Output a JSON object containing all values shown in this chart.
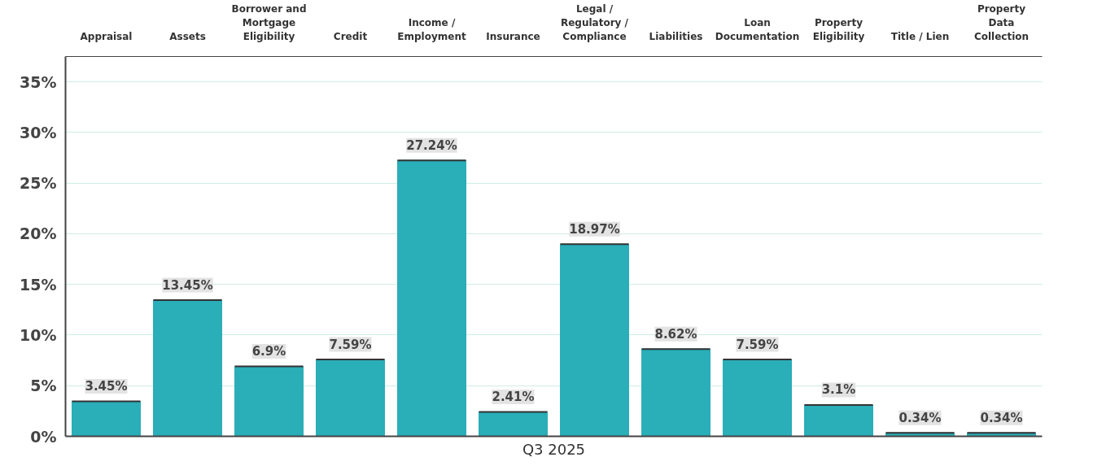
{
  "chart_data": {
    "type": "bar",
    "xlabel": "Q3 2025",
    "categories": [
      "Appraisal",
      "Assets",
      "Borrower and Mortgage Eligibility",
      "Credit",
      "Income / Employment",
      "Insurance",
      "Legal / Regulatory / Compliance",
      "Liabilities",
      "Loan Documentation",
      "Property Eligibility",
      "Title / Lien",
      "Property Data Collection"
    ],
    "values": [
      3.45,
      13.45,
      6.9,
      7.59,
      27.24,
      2.41,
      18.97,
      8.62,
      7.59,
      3.1,
      0.34,
      0.34
    ],
    "value_labels": [
      "3.45%",
      "13.45%",
      "6.9%",
      "7.59%",
      "27.24%",
      "2.41%",
      "18.97%",
      "8.62%",
      "7.59%",
      "3.1%",
      "0.34%",
      "0.34%"
    ],
    "color": "#2aaeb8",
    "ylim": [
      0,
      37.5
    ],
    "yticks": [
      {
        "value": 0,
        "label": "0%"
      },
      {
        "value": 5,
        "label": "5%"
      },
      {
        "value": 10,
        "label": "10%"
      },
      {
        "value": 15,
        "label": "15%"
      },
      {
        "value": 20,
        "label": "20%"
      },
      {
        "value": 25,
        "label": "25%"
      },
      {
        "value": 30,
        "label": "30%"
      },
      {
        "value": 35,
        "label": "35%"
      }
    ],
    "grid": "y"
  }
}
